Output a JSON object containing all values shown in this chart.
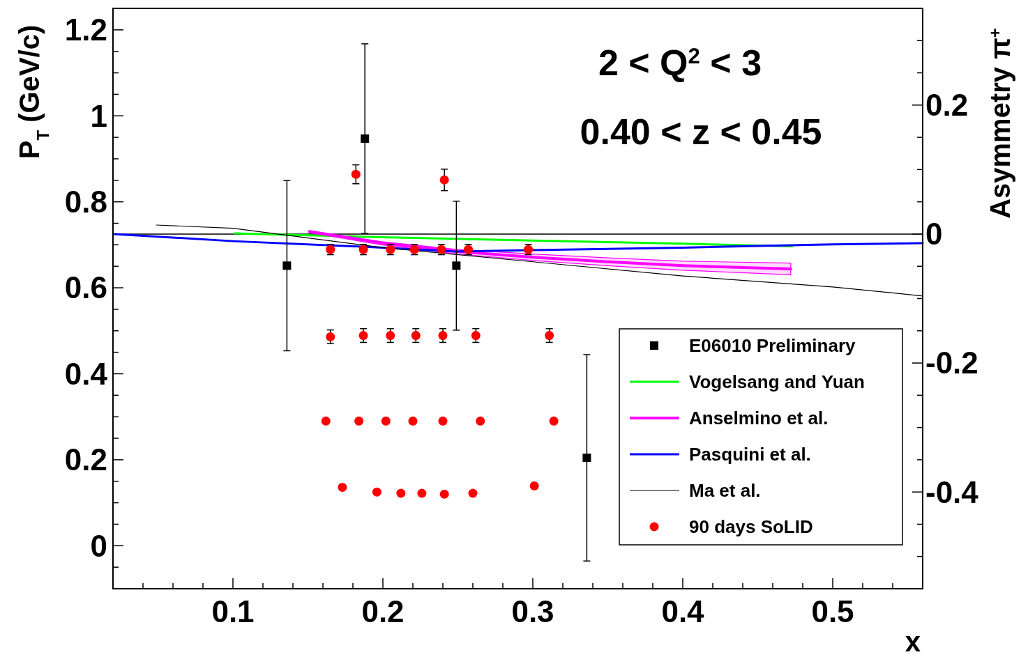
{
  "chart_data": {
    "type": "scatter",
    "xlabel": "x",
    "ylabel": "P$_{T}$ (GeV/c)",
    "y2label": "Asymmetry π$^{+}$",
    "annotations": [
      "2 < Q$^{2}$ < 3",
      "0.40 < z < 0.45"
    ],
    "xlim": [
      0.02,
      0.56
    ],
    "ylim": [
      -0.1,
      1.25
    ],
    "y2lim": [
      -0.55,
      0.35
    ],
    "xticks": [
      {
        "value": 0.04,
        "label": null
      },
      {
        "value": 0.06,
        "label": null
      },
      {
        "value": 0.08,
        "label": null
      },
      0.1,
      {
        "value": 0.12,
        "label": null
      },
      {
        "value": 0.14,
        "label": null
      },
      {
        "value": 0.16,
        "label": null
      },
      {
        "value": 0.18,
        "label": null
      },
      0.2,
      {
        "value": 0.22,
        "label": null
      },
      {
        "value": 0.24,
        "label": null
      },
      {
        "value": 0.26,
        "label": null
      },
      {
        "value": 0.28,
        "label": null
      },
      0.3,
      {
        "value": 0.32,
        "label": null
      },
      {
        "value": 0.34,
        "label": null
      },
      {
        "value": 0.36,
        "label": null
      },
      {
        "value": 0.38,
        "label": null
      },
      0.4,
      {
        "value": 0.42,
        "label": null
      },
      {
        "value": 0.44,
        "label": null
      },
      {
        "value": 0.46,
        "label": null
      },
      {
        "value": 0.48,
        "label": null
      },
      0.5,
      {
        "value": 0.52,
        "label": null
      },
      {
        "value": 0.54,
        "label": null
      }
    ],
    "yticks": [
      {
        "value": -0.05,
        "label": null
      },
      0,
      {
        "value": 0.05,
        "label": null
      },
      {
        "value": 0.1,
        "label": null
      },
      {
        "value": 0.15,
        "label": null
      },
      0.2,
      {
        "value": 0.25,
        "label": null
      },
      {
        "value": 0.3,
        "label": null
      },
      {
        "value": 0.35,
        "label": null
      },
      0.4,
      {
        "value": 0.45,
        "label": null
      },
      {
        "value": 0.5,
        "label": null
      },
      {
        "value": 0.55,
        "label": null
      },
      0.6,
      {
        "value": 0.65,
        "label": null
      },
      {
        "value": 0.7,
        "label": null
      },
      {
        "value": 0.75,
        "label": null
      },
      0.8,
      {
        "value": 0.85,
        "label": null
      },
      {
        "value": 0.9,
        "label": null
      },
      {
        "value": 0.95,
        "label": null
      },
      1,
      {
        "value": 1.05,
        "label": null
      },
      {
        "value": 1.1,
        "label": null
      },
      {
        "value": 1.15,
        "label": null
      },
      1.2
    ],
    "y2ticks": [
      {
        "value": -0.5,
        "label": null
      },
      {
        "value": -0.45,
        "label": null
      },
      -0.4,
      {
        "value": -0.35,
        "label": null
      },
      {
        "value": -0.3,
        "label": null
      },
      {
        "value": -0.25,
        "label": null
      },
      -0.2,
      {
        "value": -0.15,
        "label": null
      },
      {
        "value": -0.1,
        "label": null
      },
      {
        "value": -0.05,
        "label": null
      },
      0,
      {
        "value": 0.05,
        "label": null
      },
      {
        "value": 0.1,
        "label": null
      },
      {
        "value": 0.15,
        "label": null
      },
      0.2,
      {
        "value": 0.25,
        "label": null
      },
      {
        "value": 0.3,
        "label": null
      }
    ],
    "ref_lines": [
      {
        "axis": "y2",
        "value": 0,
        "color": "#000000"
      }
    ],
    "legend": "bottom right",
    "series": [
      {
        "name": "E06010 Preliminary",
        "marker": "square",
        "axis": "y2",
        "color": "#000000",
        "x": [
          0.136,
          0.188,
          0.249,
          0.336
        ],
        "values": [
          -0.049,
          0.148,
          -0.049,
          -0.347
        ],
        "errors": [
          0.132,
          0.147,
          0.1,
          0.16
        ]
      },
      {
        "name": "Vogelsang and Yuan",
        "type": "line",
        "axis": "y2",
        "color": "#00ff00",
        "x": [
          0.101,
          0.2,
          0.3,
          0.4,
          0.473
        ],
        "values": [
          0.001,
          -0.005,
          -0.01,
          -0.015,
          -0.019
        ]
      },
      {
        "name": "Anselmino et al.",
        "type": "line",
        "axis": "y2",
        "color": "#ff00ff",
        "x": [
          0.151,
          0.2,
          0.25,
          0.3,
          0.35,
          0.4,
          0.472
        ],
        "values": [
          0.004,
          -0.014,
          -0.027,
          -0.036,
          -0.043,
          -0.049,
          -0.054
        ],
        "lower": [
          0.002,
          -0.017,
          -0.031,
          -0.041,
          -0.049,
          -0.056,
          -0.063
        ],
        "upper": [
          0.005,
          -0.012,
          -0.024,
          -0.031,
          -0.037,
          -0.042,
          -0.045
        ]
      },
      {
        "name": "Pasquini et al.",
        "type": "line",
        "axis": "y2",
        "color": "#0000ff",
        "x": [
          0.021,
          0.1,
          0.2,
          0.248,
          0.3,
          0.4,
          0.5,
          0.56
        ],
        "values": [
          0,
          -0.011,
          -0.021,
          -0.027,
          -0.025,
          -0.021,
          -0.016,
          -0.014
        ]
      },
      {
        "name": "Ma et al.",
        "type": "line",
        "axis": "y2",
        "color": "#000000",
        "x": [
          0.049,
          0.1,
          0.2,
          0.3,
          0.4,
          0.5,
          0.56
        ],
        "values": [
          0.014,
          0.009,
          -0.021,
          -0.043,
          -0.065,
          -0.082,
          -0.096
        ]
      },
      {
        "name": "90 days SoLID",
        "marker": "circle",
        "color": "#ff0000",
        "x": [
          0.182,
          0.241,
          0.165,
          0.187,
          0.205,
          0.221,
          0.239,
          0.257,
          0.297,
          0.165,
          0.187,
          0.205,
          0.222,
          0.24,
          0.262,
          0.311,
          0.162,
          0.184,
          0.202,
          0.22,
          0.24,
          0.265,
          0.314,
          0.173,
          0.196,
          0.212,
          0.226,
          0.241,
          0.26,
          0.301
        ],
        "values": [
          0.864,
          0.851,
          0.689,
          0.689,
          0.689,
          0.689,
          0.689,
          0.689,
          0.689,
          0.486,
          0.489,
          0.489,
          0.489,
          0.489,
          0.489,
          0.489,
          0.29,
          0.29,
          0.29,
          0.29,
          0.29,
          0.29,
          0.29,
          0.136,
          0.125,
          0.122,
          0.122,
          0.12,
          0.122,
          0.139
        ],
        "errors": [
          0.022,
          0.025,
          0.012,
          0.012,
          0.012,
          0.012,
          0.012,
          0.012,
          0.012,
          0.016,
          0.016,
          0.016,
          0.016,
          0.016,
          0.016,
          0.016,
          null,
          null,
          null,
          null,
          null,
          null,
          null,
          null,
          null,
          null,
          null,
          null,
          null,
          null
        ]
      }
    ]
  }
}
